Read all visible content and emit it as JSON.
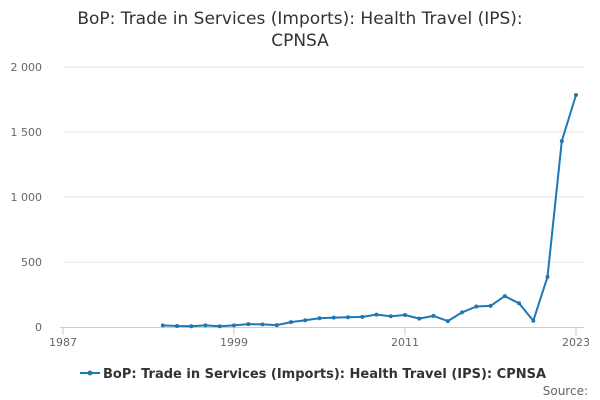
{
  "chart_data": {
    "type": "line",
    "title_lines": [
      "BoP: Trade in Services (Imports): Health Travel (IPS):",
      "CPNSA"
    ],
    "xlabel": "",
    "ylabel": "",
    "xlim": [
      1987,
      2023
    ],
    "ylim": [
      0,
      2000
    ],
    "x_ticks": [
      1987,
      1999,
      2011,
      2023
    ],
    "x_tick_labels": [
      "1987",
      "1999",
      "2011",
      "2023"
    ],
    "y_ticks": [
      0,
      500,
      1000,
      1500,
      2000
    ],
    "y_tick_labels": [
      "0",
      "500",
      "1 000",
      "1 500",
      "2 000"
    ],
    "grid": "horizontal",
    "legend_position": "bottom",
    "series": [
      {
        "name": "BoP: Trade in Services (Imports): Health Travel (IPS): CPNSA",
        "color": "#1f77b4",
        "x": [
          1994,
          1995,
          1996,
          1997,
          1998,
          1999,
          2000,
          2001,
          2002,
          2003,
          2004,
          2005,
          2006,
          2007,
          2008,
          2009,
          2010,
          2011,
          2012,
          2013,
          2014,
          2015,
          2016,
          2017,
          2018,
          2019,
          2020,
          2021,
          2022,
          2023
        ],
        "y": [
          12,
          8,
          6,
          12,
          6,
          12,
          22,
          20,
          15,
          38,
          52,
          68,
          72,
          75,
          78,
          95,
          82,
          92,
          65,
          85,
          45,
          112,
          158,
          162,
          238,
          182,
          48,
          385,
          1430,
          1785
        ]
      }
    ]
  },
  "source_label": "Source:"
}
